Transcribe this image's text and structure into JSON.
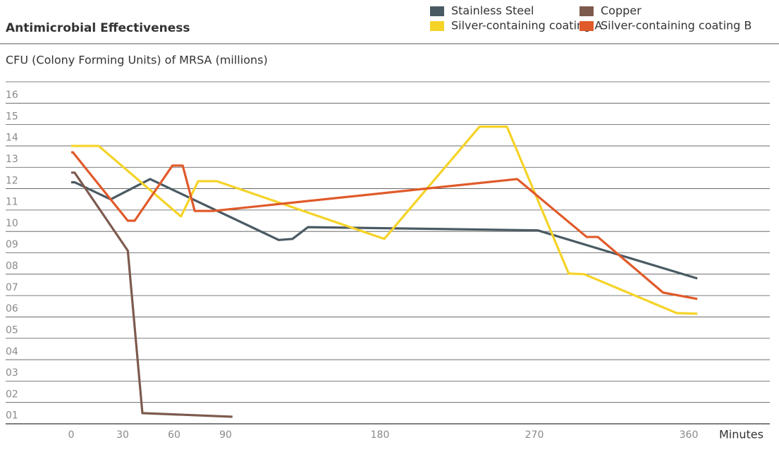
{
  "chart_data": {
    "type": "line",
    "title": "Antimicrobial Effectiveness",
    "subtitle": "CFU (Colony Forming Units) of MRSA (millions)",
    "x_label": "Minutes",
    "xlim": [
      0,
      360
    ],
    "xticks": [
      0,
      30,
      60,
      90,
      180,
      270,
      360
    ],
    "ylim": [
      0,
      16
    ],
    "yticks": [
      {
        "value": 1,
        "label": "01"
      },
      {
        "value": 2,
        "label": "02"
      },
      {
        "value": 3,
        "label": "03"
      },
      {
        "value": 4,
        "label": "04"
      },
      {
        "value": 5,
        "label": "05"
      },
      {
        "value": 6,
        "label": "06"
      },
      {
        "value": 7,
        "label": "07"
      },
      {
        "value": 8,
        "label": "08"
      },
      {
        "value": 9,
        "label": "09"
      },
      10,
      11,
      12,
      13,
      14,
      15,
      16
    ],
    "grid": true,
    "series": [
      {
        "name": "Stainless Steel",
        "color": "#4a5a63",
        "x": [
          0,
          2,
          23,
          46,
          121,
          129,
          138,
          272,
          365
        ],
        "values": [
          11.3,
          11.3,
          10.5,
          11.45,
          8.6,
          8.65,
          9.2,
          9.05,
          6.8
        ]
      },
      {
        "name": "Copper",
        "color": "#7d5a4e",
        "x": [
          0,
          2,
          33,
          41.5,
          94
        ],
        "values": [
          11.75,
          11.75,
          8.1,
          0.5,
          0.33
        ]
      },
      {
        "name": "Silver-containing coating A",
        "color": "#f5d327",
        "x": [
          0,
          16,
          64,
          74,
          85,
          182.5,
          238,
          254,
          290,
          299,
          353,
          365
        ],
        "values": [
          13.0,
          13.0,
          9.7,
          11.35,
          11.35,
          8.65,
          13.9,
          13.9,
          7.03,
          7.0,
          5.18,
          5.15
        ]
      },
      {
        "name": "Silver-containing coating B",
        "color": "#e05a2a",
        "x": [
          0,
          1,
          33,
          37,
          59,
          65,
          72,
          83,
          260,
          300.5,
          307,
          345,
          365
        ],
        "values": [
          12.7,
          12.7,
          9.5,
          9.5,
          12.08,
          12.08,
          9.96,
          9.96,
          11.45,
          8.74,
          8.74,
          6.14,
          5.84
        ]
      }
    ]
  }
}
